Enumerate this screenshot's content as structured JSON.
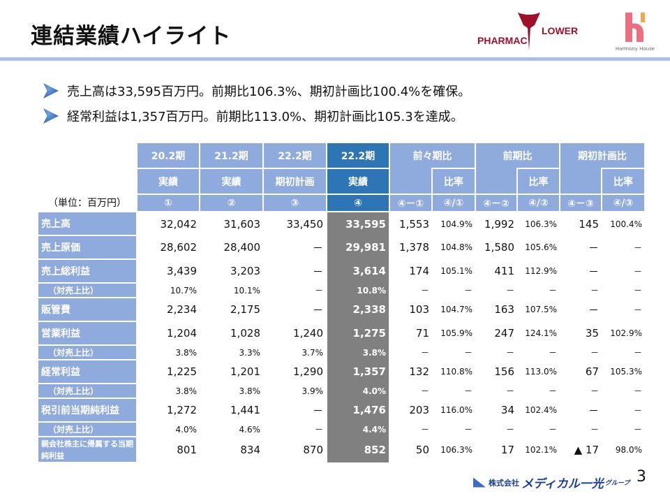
{
  "title": "連結業績ハイライト",
  "logos": {
    "pharmacy": "PHARMACY FLOWER",
    "harmony": "Harmony House",
    "footer_company": "株式会社",
    "footer_brand": "メディカル一光",
    "footer_group": "グループ"
  },
  "bullets": [
    "売上高は33,595百万円。前期比106.3%、期初計画比100.4%を確保。",
    "経常利益は1,357百万円。前期比113.0%、期初計画比105.3を達成。"
  ],
  "table": {
    "unit": "（単位：百万円）",
    "header_top": [
      "20.2期",
      "21.2期",
      "22.2期",
      "22.2期",
      "前々期比",
      "前期比",
      "期初計画比"
    ],
    "header_mid": [
      "実績",
      "実績",
      "期初計画",
      "実績",
      "比率",
      "比率",
      "比率"
    ],
    "header_idx": [
      "①",
      "②",
      "③",
      "④",
      "④－①",
      "④/①",
      "④－②",
      "④/②",
      "④－③",
      "④/③"
    ],
    "rows": [
      {
        "label": "売上高",
        "sub": false,
        "cells": [
          "32,042",
          "31,603",
          "33,450",
          "33,595",
          "1,553",
          "104.9%",
          "1,992",
          "106.3%",
          "145",
          "100.4%"
        ]
      },
      {
        "label": "売上原価",
        "sub": false,
        "cells": [
          "28,602",
          "28,400",
          "－",
          "29,981",
          "1,378",
          "104.8%",
          "1,580",
          "105.6%",
          "－",
          "－"
        ]
      },
      {
        "label": "売上総利益",
        "sub": false,
        "cells": [
          "3,439",
          "3,203",
          "－",
          "3,614",
          "174",
          "105.1%",
          "411",
          "112.9%",
          "－",
          "－"
        ]
      },
      {
        "label": "（対売上比）",
        "sub": true,
        "cells": [
          "10.7%",
          "10.1%",
          "－",
          "10.8%",
          "－",
          "－",
          "－",
          "－",
          "－",
          "－"
        ]
      },
      {
        "label": "販管費",
        "sub": false,
        "cells": [
          "2,234",
          "2,175",
          "－",
          "2,338",
          "103",
          "104.7%",
          "163",
          "107.5%",
          "－",
          "－"
        ]
      },
      {
        "label": "営業利益",
        "sub": false,
        "cells": [
          "1,204",
          "1,028",
          "1,240",
          "1,275",
          "71",
          "105.9%",
          "247",
          "124.1%",
          "35",
          "102.9%"
        ]
      },
      {
        "label": "（対売上比）",
        "sub": true,
        "cells": [
          "3.8%",
          "3.3%",
          "3.7%",
          "3.8%",
          "－",
          "－",
          "－",
          "－",
          "－",
          "－"
        ]
      },
      {
        "label": "経常利益",
        "sub": false,
        "cells": [
          "1,225",
          "1,201",
          "1,290",
          "1,357",
          "132",
          "110.8%",
          "156",
          "113.0%",
          "67",
          "105.3%"
        ]
      },
      {
        "label": "（対売上比）",
        "sub": true,
        "cells": [
          "3.8%",
          "3.8%",
          "3.9%",
          "4.0%",
          "－",
          "－",
          "－",
          "－",
          "－",
          "－"
        ]
      },
      {
        "label": "税引前当期純利益",
        "sub": false,
        "cells": [
          "1,272",
          "1,441",
          "－",
          "1,476",
          "203",
          "116.0%",
          "34",
          "102.4%",
          "－",
          "－"
        ]
      },
      {
        "label": "（対売上比）",
        "sub": true,
        "cells": [
          "4.0%",
          "4.6%",
          "－",
          "4.4%",
          "－",
          "－",
          "－",
          "－",
          "－",
          "－"
        ]
      },
      {
        "label": "親会社株主に帰属する当期純利益",
        "sub": false,
        "cells": [
          "801",
          "834",
          "870",
          "852",
          "50",
          "106.3%",
          "17",
          "102.1%",
          "▲ 17",
          "98.0%"
        ]
      }
    ]
  },
  "page_number": "3",
  "colors": {
    "header": "#8faadc",
    "highlight_header": "#2e75b6",
    "highlight_col": "#808080",
    "rule": "#a9bfe4"
  }
}
